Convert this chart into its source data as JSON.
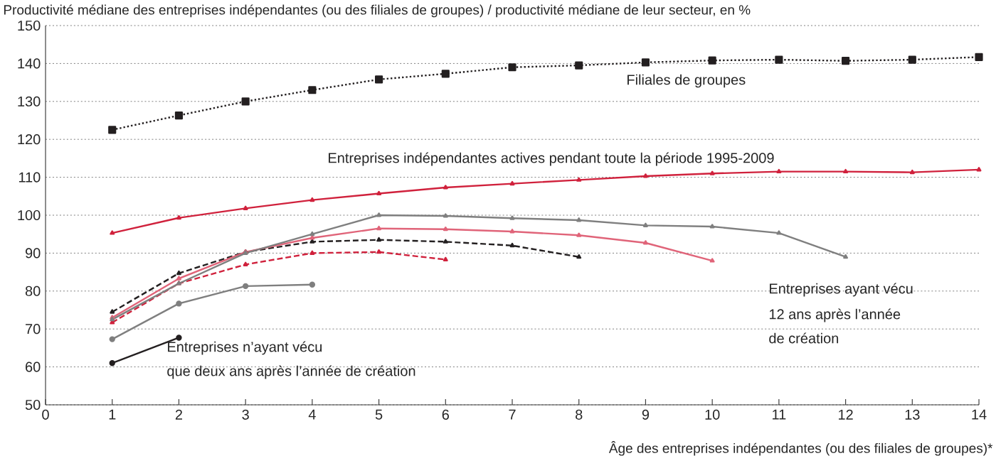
{
  "chart_data": {
    "type": "line",
    "ylabel": "Productivité médiane des entreprises indépendantes (ou des filiales de groupes) / productivité médiane de leur secteur, en %",
    "xlabel": "Âge des entreprises indépendantes (ou des filiales de groupes)*",
    "xlim": [
      0,
      14
    ],
    "xticks": [
      0,
      1,
      2,
      3,
      4,
      5,
      6,
      7,
      8,
      9,
      10,
      11,
      12,
      13,
      14
    ],
    "ylim": [
      50,
      150
    ],
    "yticks": [
      50,
      60,
      70,
      80,
      90,
      100,
      110,
      120,
      130,
      140,
      150
    ],
    "grid": "y",
    "series": [
      {
        "color": "#231f20",
        "line_style": "dotted",
        "marker": "square",
        "x": [
          1,
          2,
          3,
          4,
          5,
          6,
          7,
          8,
          9,
          10,
          11,
          12,
          13,
          14
        ],
        "values": [
          122.5,
          126.3,
          130,
          133,
          135.8,
          137.3,
          139,
          139.5,
          140.3,
          140.8,
          141,
          140.7,
          141,
          141.7
        ]
      },
      {
        "color": "#d0213c",
        "line_style": "solid",
        "marker": "triangle",
        "x": [
          1,
          2,
          3,
          4,
          5,
          6,
          7,
          8,
          9,
          10,
          11,
          12,
          13,
          14
        ],
        "values": [
          95.3,
          99.3,
          101.8,
          104,
          105.7,
          107.3,
          108.3,
          109.3,
          110.3,
          111,
          111.5,
          111.5,
          111.3,
          112
        ]
      },
      {
        "color": "#231f20",
        "line_style": "solid",
        "marker": "circle",
        "x": [
          1,
          2
        ],
        "values": [
          61,
          67.7
        ]
      },
      {
        "color": "#7f7f7f",
        "line_style": "solid",
        "marker": "circle",
        "x": [
          1,
          2,
          3,
          4
        ],
        "values": [
          67.3,
          76.7,
          81.3,
          81.7
        ]
      },
      {
        "color": "#d0213c",
        "line_style": "dashed",
        "marker": "triangle",
        "x": [
          1,
          2,
          3,
          4,
          5,
          6
        ],
        "values": [
          71.7,
          82,
          87,
          90,
          90.3,
          88.3
        ]
      },
      {
        "color": "#231f20",
        "line_style": "dashed",
        "marker": "triangle",
        "x": [
          1,
          2,
          3,
          4,
          5,
          6,
          7,
          8
        ],
        "values": [
          74.5,
          84.7,
          90.3,
          93,
          93.5,
          93,
          92,
          89
        ]
      },
      {
        "color": "#e06479",
        "line_style": "solid",
        "marker": "triangle",
        "x": [
          1,
          2,
          3,
          4,
          5,
          6,
          7,
          8,
          9,
          10
        ],
        "values": [
          73,
          83.3,
          90.3,
          94,
          96.5,
          96.3,
          95.7,
          94.7,
          92.7,
          88
        ]
      },
      {
        "color": "#7f7f7f",
        "line_style": "solid",
        "marker": "triangle",
        "x": [
          1,
          2,
          3,
          4,
          5,
          6,
          7,
          8,
          9,
          10,
          11,
          12
        ],
        "values": [
          72.5,
          82,
          90,
          95,
          100,
          99.8,
          99.2,
          98.7,
          97.3,
          97,
          95.3,
          89
        ]
      }
    ],
    "annotations": [
      "Filiales de groupes",
      "Entreprises indépendantes actives pendant toute la période 1995-2009",
      "Entreprises n’ayant vécu",
      "que deux ans après l’année de création",
      "Entreprises ayant vécu",
      "12 ans après l’année",
      "de création"
    ]
  }
}
